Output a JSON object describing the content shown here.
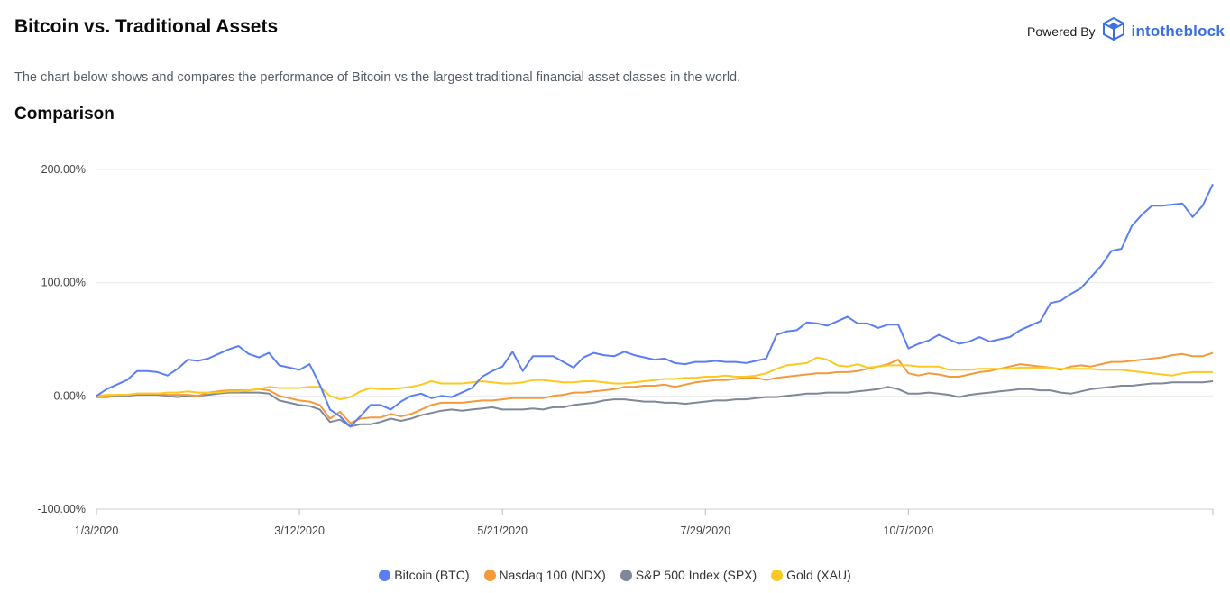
{
  "header": {
    "title": "Bitcoin vs. Traditional Assets",
    "powered_by_label": "Powered By",
    "brand_name": "intotheblock",
    "brand_icon": "intotheblock-cube-logo"
  },
  "description": "The chart below shows and compares the performance of Bitcoin vs the largest traditional financial asset classes in the world.",
  "section_title": "Comparison",
  "chart_data": {
    "type": "line",
    "title": "Comparison",
    "xlabel": "",
    "ylabel": "",
    "ylim": [
      -100,
      200
    ],
    "y_ticks": [
      "200.00%",
      "100.00%",
      "0.00%",
      "-100.00%"
    ],
    "y_tick_values": [
      200,
      100,
      0,
      -100
    ],
    "x_ticks": [
      "1/3/2020",
      "3/12/2020",
      "5/21/2020",
      "7/29/2020",
      "10/7/2020"
    ],
    "x_tick_positions": [
      0,
      20,
      40,
      60,
      80
    ],
    "grid": true,
    "legend_position": "bottom",
    "series": [
      {
        "name": "Bitcoin (BTC)",
        "color": "#5b7ff0",
        "values": [
          0,
          6,
          10,
          14,
          22,
          22,
          21,
          18,
          24,
          32,
          31,
          33,
          37,
          41,
          44,
          37,
          34,
          38,
          27,
          25,
          23,
          28,
          10,
          -12,
          -18,
          -27,
          -18,
          -8,
          -8,
          -12,
          -5,
          0,
          2,
          -2,
          0,
          -1,
          3,
          7,
          17,
          22,
          26,
          39,
          22,
          35,
          35,
          35,
          30,
          25,
          34,
          38,
          36,
          35,
          39,
          36,
          34,
          32,
          33,
          29,
          28,
          30,
          30,
          31,
          30,
          30,
          29,
          31,
          33,
          54,
          57,
          58,
          65,
          64,
          62,
          66,
          70,
          64,
          64,
          60,
          63,
          63,
          42,
          46,
          49,
          54,
          50,
          46,
          48,
          52,
          48,
          50,
          52,
          58,
          62,
          66,
          82,
          84,
          90,
          95,
          105,
          115,
          128,
          130,
          150,
          160,
          168,
          168,
          169,
          170,
          158,
          168,
          187
        ]
      },
      {
        "name": "Nasdaq 100 (NDX)",
        "color": "#f39a3b",
        "values": [
          0,
          0,
          1,
          1,
          2,
          2,
          2,
          1,
          1,
          1,
          0,
          3,
          4,
          5,
          5,
          5,
          6,
          5,
          0,
          -2,
          -4,
          -5,
          -8,
          -20,
          -14,
          -24,
          -20,
          -19,
          -19,
          -16,
          -18,
          -16,
          -12,
          -8,
          -6,
          -6,
          -6,
          -5,
          -4,
          -4,
          -3,
          -2,
          -2,
          -2,
          -2,
          0,
          1,
          3,
          3,
          4,
          5,
          6,
          8,
          8,
          9,
          9,
          10,
          8,
          10,
          12,
          13,
          14,
          14,
          15,
          16,
          16,
          14,
          16,
          17,
          18,
          19,
          20,
          20,
          21,
          21,
          22,
          24,
          26,
          28,
          32,
          20,
          18,
          20,
          19,
          17,
          17,
          19,
          21,
          22,
          24,
          26,
          28,
          27,
          26,
          25,
          23,
          26,
          27,
          26,
          28,
          30,
          30,
          31,
          32,
          33,
          34,
          36,
          37,
          35,
          35,
          38
        ]
      },
      {
        "name": "S&P 500 Index (SPX)",
        "color": "#7f8799",
        "values": [
          -1,
          -1,
          0,
          0,
          1,
          1,
          1,
          0,
          -1,
          0,
          0,
          1,
          2,
          3,
          3,
          3,
          3,
          2,
          -4,
          -6,
          -8,
          -9,
          -12,
          -23,
          -21,
          -27,
          -25,
          -25,
          -23,
          -20,
          -22,
          -20,
          -17,
          -15,
          -13,
          -12,
          -13,
          -12,
          -11,
          -10,
          -12,
          -12,
          -12,
          -11,
          -12,
          -10,
          -10,
          -8,
          -7,
          -6,
          -4,
          -3,
          -3,
          -4,
          -5,
          -5,
          -6,
          -6,
          -7,
          -6,
          -5,
          -4,
          -4,
          -3,
          -3,
          -2,
          -1,
          -1,
          0,
          1,
          2,
          2,
          3,
          3,
          3,
          4,
          5,
          6,
          8,
          6,
          2,
          2,
          3,
          2,
          1,
          -1,
          1,
          2,
          3,
          4,
          5,
          6,
          6,
          5,
          5,
          3,
          2,
          4,
          6,
          7,
          8,
          9,
          9,
          10,
          11,
          11,
          12,
          12,
          12,
          12,
          13
        ]
      },
      {
        "name": "Gold (XAU)",
        "color": "#fbc91f",
        "values": [
          0,
          1,
          1,
          1,
          2,
          2,
          2,
          3,
          3,
          4,
          3,
          3,
          3,
          4,
          4,
          5,
          6,
          8,
          7,
          7,
          7,
          8,
          8,
          0,
          -3,
          -1,
          4,
          7,
          6,
          6,
          7,
          8,
          10,
          13,
          11,
          11,
          11,
          12,
          13,
          12,
          11,
          11,
          12,
          14,
          14,
          13,
          12,
          12,
          13,
          13,
          12,
          11,
          11,
          12,
          13,
          14,
          15,
          15,
          16,
          16,
          17,
          17,
          18,
          17,
          17,
          18,
          20,
          24,
          27,
          28,
          29,
          34,
          32,
          27,
          26,
          28,
          25,
          26,
          27,
          27,
          27,
          26,
          26,
          26,
          23,
          23,
          23,
          24,
          24,
          24,
          24,
          25,
          25,
          25,
          25,
          24,
          24,
          24,
          24,
          23,
          23,
          23,
          22,
          21,
          20,
          19,
          18,
          20,
          21,
          21,
          21
        ]
      }
    ]
  }
}
